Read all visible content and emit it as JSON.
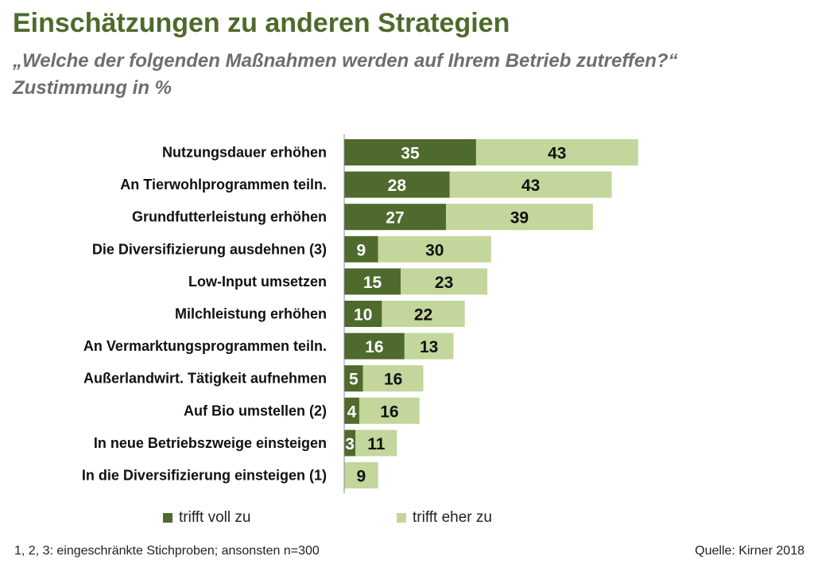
{
  "title": "Einschätzungen zu anderen Strategien",
  "subtitle_line1": "„Welche der folgenden Maßnahmen werden auf Ihrem Betrieb zutreffen?“",
  "subtitle_line2": "Zustimmung in %",
  "footnote": "1, 2, 3: eingeschränkte Stichproben; ansonsten n=300",
  "source": "Quelle: Kirner 2018",
  "colors": {
    "dark": "#4e6a2c",
    "light": "#c3d69b",
    "title": "#4e6a2c",
    "subtitle": "#6e6e6e"
  },
  "chart_data": {
    "type": "bar",
    "orientation": "horizontal",
    "stacked": true,
    "title": "Einschätzungen zu anderen Strategien",
    "xlabel": "",
    "ylabel": "",
    "xlim": [
      0,
      80
    ],
    "grid": false,
    "legend_position": "bottom",
    "categories": [
      "Nutzungsdauer erhöhen",
      "An Tierwohlprogrammen teiln.",
      "Grundfutterleistung erhöhen",
      "Die Diversifizierung ausdehnen (3)",
      "Low-Input umsetzen",
      "Milchleistung erhöhen",
      "An Vermarktungsprogrammen teiln.",
      "Außerlandwirt. Tätigkeit aufnehmen",
      "Auf Bio umstellen (2)",
      "In neue Betriebszweige einsteigen",
      "In die Diversifizierung einsteigen (1)"
    ],
    "series": [
      {
        "name": "trifft voll zu",
        "color": "#4e6a2c",
        "label_color": "#ffffff",
        "values": [
          35,
          28,
          27,
          9,
          15,
          10,
          16,
          5,
          4,
          3,
          0
        ]
      },
      {
        "name": "trifft eher zu",
        "color": "#c3d69b",
        "label_color": "#111111",
        "values": [
          43,
          43,
          39,
          30,
          23,
          22,
          13,
          16,
          16,
          11,
          9
        ]
      }
    ]
  }
}
